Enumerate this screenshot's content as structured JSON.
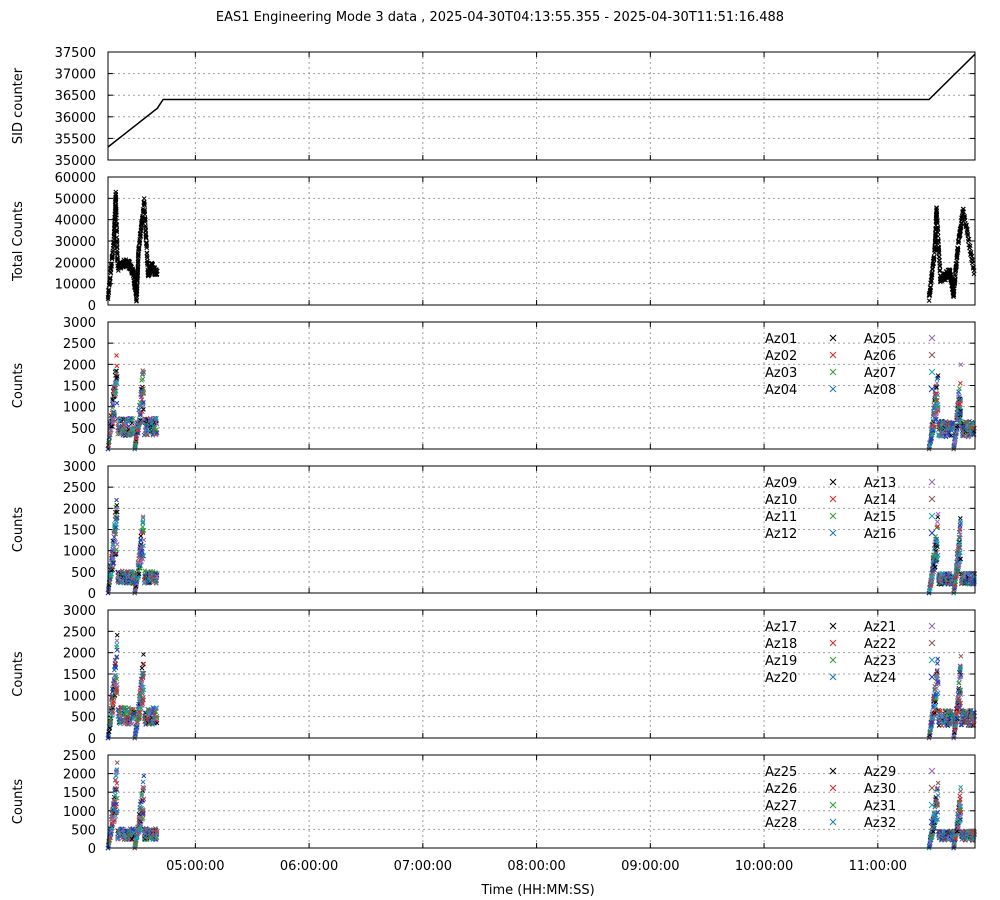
{
  "chart_data": {
    "title": "EAS1  Engineering Mode 3 data ,  2025-04-30T04:13:55.355 - 2025-04-30T11:51:16.488",
    "xlabel": "Time (HH:MM:SS)",
    "x_range": [
      "04:13:55",
      "11:51:16"
    ],
    "x_ticks": [
      "05:00:00",
      "06:00:00",
      "07:00:00",
      "08:00:00",
      "09:00:00",
      "10:00:00",
      "11:00:00"
    ],
    "grid": true,
    "panels": [
      {
        "type": "line",
        "ylabel": "SID counter",
        "ylim": [
          35000,
          37500
        ],
        "y_ticks": [
          35000,
          35500,
          36000,
          36500,
          37000,
          37500
        ],
        "series": [
          {
            "color": "#000000",
            "x": [
              "04:13:55",
              "04:40:00",
              "04:43:00",
              "11:27:00",
              "11:51:16"
            ],
            "y": [
              35300,
              36200,
              36400,
              36400,
              37450
            ]
          }
        ]
      },
      {
        "type": "scatter",
        "ylabel": "Total Counts",
        "ylim": [
          0,
          60000
        ],
        "y_ticks": [
          0,
          10000,
          20000,
          30000,
          40000,
          50000,
          60000
        ],
        "series": [
          {
            "color": "#000000",
            "x": [
              "04:13:55",
              "04:17:00",
              "04:18:00",
              "04:19:00",
              "04:24:00",
              "04:27:00",
              "04:29:00",
              "04:30:00",
              "04:33:00",
              "04:35:00",
              "04:37:00",
              "04:40:00",
              "11:27:00",
              "11:30:00",
              "11:31:00",
              "11:33:00",
              "11:38:00",
              "11:40:00",
              "11:42:00",
              "11:45:00",
              "11:51:00"
            ],
            "y": [
              3000,
              30000,
              52000,
              18000,
              20000,
              16000,
              3000,
              25000,
              48000,
              15000,
              18000,
              14000,
              3000,
              25000,
              45000,
              12000,
              15000,
              5000,
              25000,
              45000,
              15000
            ]
          }
        ]
      },
      {
        "type": "scatter",
        "ylabel": "Counts",
        "ylim": [
          0,
          3000
        ],
        "y_ticks": [
          0,
          500,
          1000,
          1500,
          2000,
          2500,
          3000
        ],
        "legend": [
          "Az01",
          "Az02",
          "Az03",
          "Az04",
          "Az05",
          "Az06",
          "Az07",
          "Az08"
        ],
        "peak": 2500,
        "plateau": 700
      },
      {
        "type": "scatter",
        "ylabel": "Counts",
        "ylim": [
          0,
          3000
        ],
        "y_ticks": [
          0,
          500,
          1000,
          1500,
          2000,
          2500,
          3000
        ],
        "legend": [
          "Az09",
          "Az10",
          "Az11",
          "Az12",
          "Az13",
          "Az14",
          "Az15",
          "Az16"
        ],
        "peak": 2400,
        "plateau": 500
      },
      {
        "type": "scatter",
        "ylabel": "Counts",
        "ylim": [
          0,
          3000
        ],
        "y_ticks": [
          0,
          500,
          1000,
          1500,
          2000,
          2500,
          3000
        ],
        "legend": [
          "Az17",
          "Az18",
          "Az19",
          "Az20",
          "Az21",
          "Az22",
          "Az23",
          "Az24"
        ],
        "peak": 2400,
        "plateau": 700
      },
      {
        "type": "scatter",
        "ylabel": "Counts",
        "ylim": [
          0,
          2500
        ],
        "y_ticks": [
          0,
          500,
          1000,
          1500,
          2000,
          2500
        ],
        "legend": [
          "Az25",
          "Az26",
          "Az27",
          "Az28",
          "Az29",
          "Az30",
          "Az31",
          "Az32"
        ],
        "peak": 2300,
        "plateau": 500
      }
    ],
    "legend_colors": [
      "#000000",
      "#d62728",
      "#2ca02c",
      "#1f77b4",
      "#9467bd",
      "#8c564b",
      "#17a2b8",
      "#1a3cc8"
    ]
  }
}
